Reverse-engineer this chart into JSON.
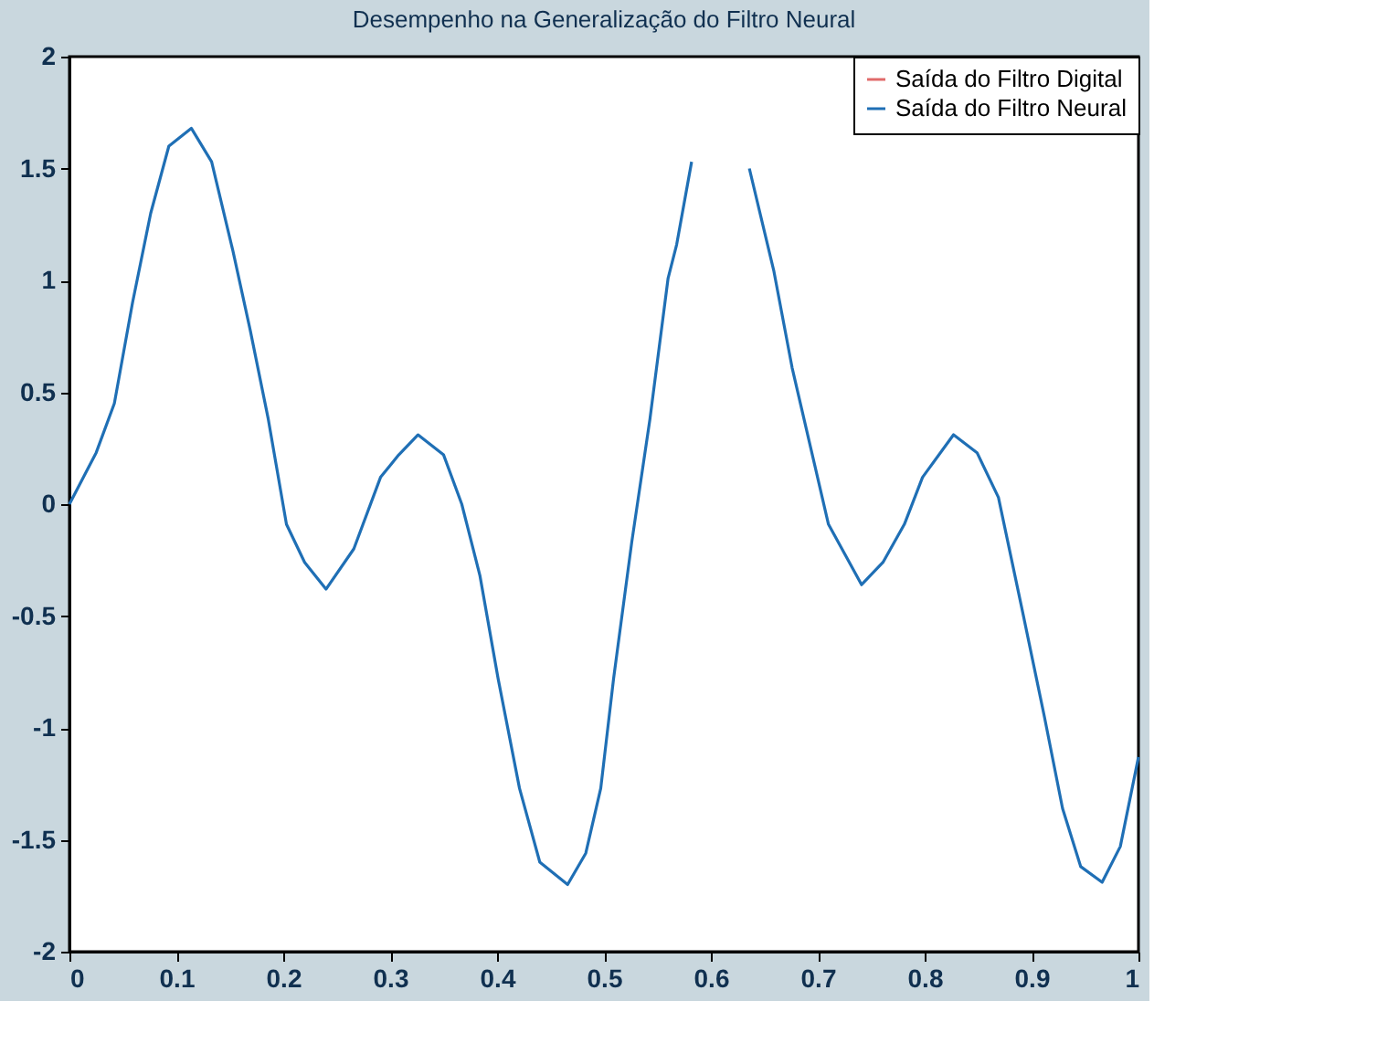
{
  "chart_data": {
    "type": "line",
    "title": "Desempenho na Generalização do Filtro Neural",
    "x": [
      0,
      0.025,
      0.042,
      0.059,
      0.076,
      0.093,
      0.114,
      0.133,
      0.153,
      0.169,
      0.186,
      0.203,
      0.22,
      0.24,
      0.266,
      0.291,
      0.308,
      0.326,
      0.35,
      0.367,
      0.384,
      0.401,
      0.421,
      0.44,
      0.466,
      0.483,
      0.497,
      0.509,
      0.526,
      0.543,
      0.56,
      0.568,
      0.582,
      0.6,
      0.62,
      0.636,
      0.659,
      0.676,
      0.693,
      0.71,
      0.741,
      0.761,
      0.781,
      0.798,
      0.827,
      0.849,
      0.869,
      0.892,
      0.912,
      0.929,
      0.946,
      0.966,
      0.983,
      1.0
    ],
    "series": [
      {
        "name": "Saída do Filtro Digital",
        "color": "#e06a6a",
        "values": [
          null,
          null,
          null,
          null,
          null,
          null,
          null,
          null,
          null,
          null,
          null,
          null,
          null,
          null,
          null,
          null,
          null,
          null,
          null,
          null,
          null,
          null,
          null,
          null,
          null,
          null,
          null,
          null,
          null,
          null,
          null,
          null,
          null,
          null,
          null,
          null,
          null,
          null,
          null,
          null,
          null,
          null,
          null,
          null,
          null,
          null,
          null,
          null,
          null,
          null,
          null,
          null,
          null,
          null
        ]
      },
      {
        "name": "Saída do Filtro Neural",
        "color": "#1f6fb5",
        "values": [
          0,
          0.23,
          0.45,
          0.9,
          1.3,
          1.6,
          1.68,
          1.53,
          1.13,
          0.78,
          0.38,
          -0.09,
          -0.26,
          -0.38,
          -0.2,
          0.12,
          0.22,
          0.31,
          0.22,
          0.0,
          -0.32,
          -0.78,
          -1.27,
          -1.6,
          -1.7,
          -1.56,
          -1.27,
          -0.78,
          -0.17,
          0.38,
          1.01,
          1.16,
          1.53,
          null,
          null,
          1.5,
          1.04,
          0.61,
          0.26,
          -0.09,
          -0.36,
          -0.26,
          -0.09,
          0.12,
          0.31,
          0.23,
          0.03,
          -0.49,
          -0.95,
          -1.36,
          -1.62,
          -1.69,
          -1.53,
          -1.13
        ]
      }
    ],
    "xlim": [
      0,
      1
    ],
    "xticks": [
      0,
      0.1,
      0.2,
      0.3,
      0.4,
      0.5,
      0.6,
      0.7,
      0.8,
      0.9,
      1
    ],
    "ylim": [
      -2,
      2
    ],
    "yticks": [
      -2,
      -1.5,
      -1,
      -0.5,
      0,
      0.5,
      1,
      1.5,
      2
    ],
    "grid": false,
    "legend": "top right"
  }
}
